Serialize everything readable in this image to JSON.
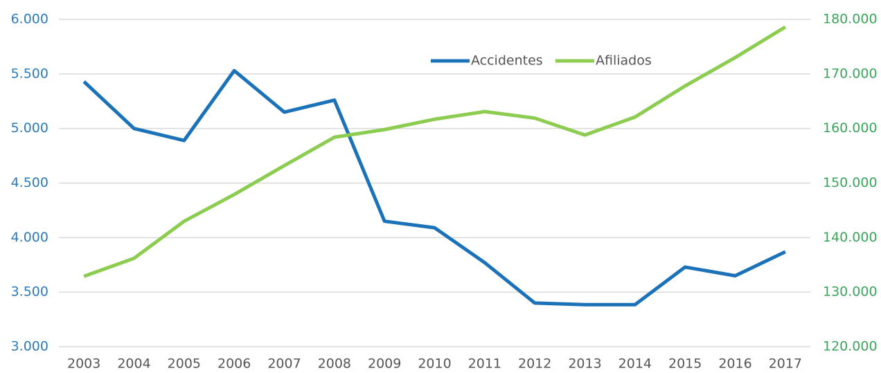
{
  "chart_data": {
    "type": "line",
    "categories": [
      "2003",
      "2004",
      "2005",
      "2006",
      "2007",
      "2008",
      "2009",
      "2010",
      "2011",
      "2012",
      "2013",
      "2014",
      "2015",
      "2016",
      "2017"
    ],
    "series": [
      {
        "name": "Accidentes",
        "color": "#1b72b8",
        "values": [
          5430,
          5000,
          4890,
          5530,
          5150,
          5260,
          4150,
          4090,
          3770,
          3400,
          3385,
          3385,
          3730,
          3650,
          3870
        ]
      },
      {
        "name": "Afiliados",
        "color": "#8ccc50",
        "axis": "y2",
        "values": [
          132900,
          136200,
          143000,
          147900,
          153200,
          158400,
          159800,
          161700,
          163100,
          161900,
          158800,
          162100,
          167800,
          173000,
          178600
        ]
      }
    ],
    "ylim": [
      3000,
      6000
    ],
    "yticks": [
      {
        "value": 3000,
        "label": "3.000"
      },
      {
        "value": 3500,
        "label": "3.500"
      },
      {
        "value": 4000,
        "label": "4.000"
      },
      {
        "value": 4500,
        "label": "4.500"
      },
      {
        "value": 5000,
        "label": "5.000"
      },
      {
        "value": 5500,
        "label": "5.500"
      },
      {
        "value": 6000,
        "label": "6.000"
      }
    ],
    "y2lim": [
      120000,
      180000
    ],
    "y2ticks": [
      {
        "value": 120000,
        "label": "120.000"
      },
      {
        "value": 130000,
        "label": "130.000"
      },
      {
        "value": 140000,
        "label": "140.000"
      },
      {
        "value": 150000,
        "label": "150.000"
      },
      {
        "value": 160000,
        "label": "160.000"
      },
      {
        "value": 170000,
        "label": "170.000"
      },
      {
        "value": 180000,
        "label": "180.000"
      }
    ],
    "grid": true,
    "legend": "top"
  }
}
